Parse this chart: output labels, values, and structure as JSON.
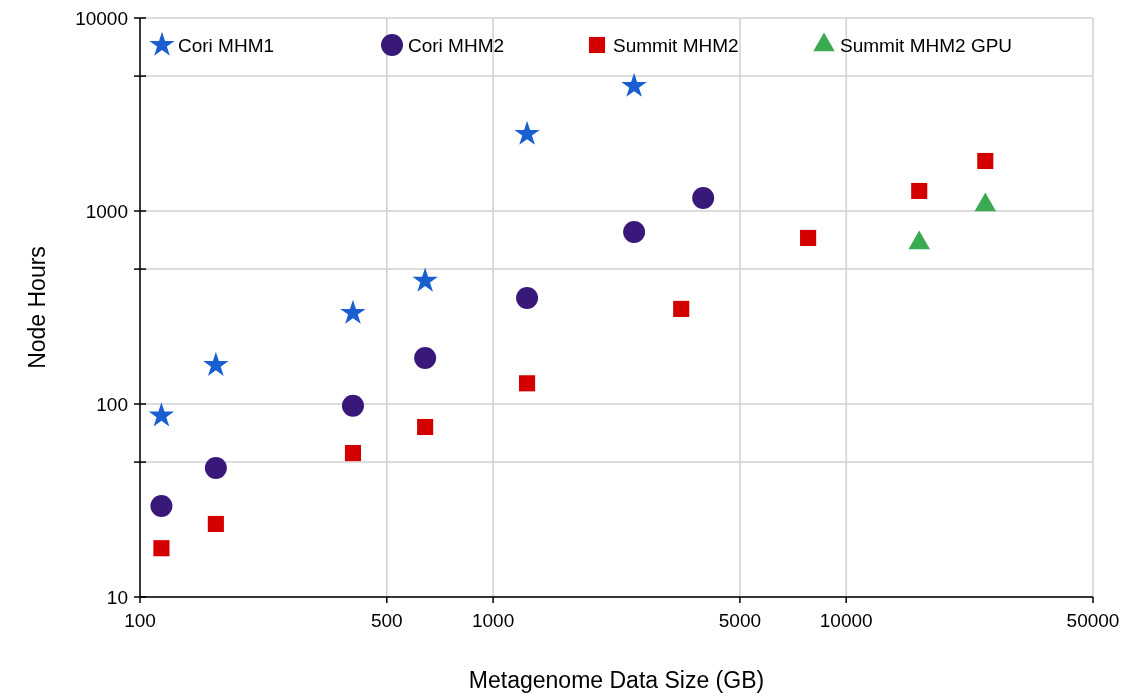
{
  "chart_data": {
    "type": "scatter",
    "xlabel": "Metagenome Data Size (GB)",
    "ylabel": "Node Hours",
    "log": "xy",
    "grid": true,
    "legend": "top",
    "xlim": [
      100,
      50000
    ],
    "xticks": [
      100,
      500,
      1000,
      5000,
      10000,
      50000
    ],
    "ylim": [
      10,
      10000
    ],
    "yticks": [
      10,
      {
        "value": 50,
        "label": null
      },
      100,
      {
        "value": 500,
        "label": null
      },
      1000,
      {
        "value": 5000,
        "label": null
      },
      10000
    ],
    "series": [
      {
        "name": "Cori MHM1",
        "color": "#1a5fd0",
        "marker": "star",
        "x": [
          115,
          164,
          401,
          642,
          1248,
          2508
        ],
        "values": [
          87,
          159,
          296,
          434,
          2505,
          4440
        ]
      },
      {
        "name": "Cori MHM2",
        "color": "#38197a",
        "marker": "circle",
        "x": [
          115,
          164,
          401,
          642,
          1248,
          2508,
          3935
        ],
        "values": [
          29.6,
          46.6,
          98,
          173,
          354,
          778,
          1167
        ]
      },
      {
        "name": "Summit MHM2",
        "color": "#d40000",
        "marker": "square",
        "x": [
          115,
          164,
          401,
          642,
          1248,
          3410,
          7800,
          16100,
          24770
        ],
        "values": [
          17.9,
          23.9,
          55.7,
          76,
          128,
          311,
          725,
          1270,
          1816
        ]
      },
      {
        "name": "Summit MHM2 GPU",
        "color": "#3aaa52",
        "marker": "triangle",
        "x": [
          16100,
          24770
        ],
        "values": [
          683,
          1074
        ]
      }
    ]
  }
}
